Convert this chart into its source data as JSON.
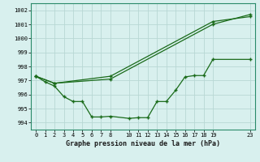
{
  "title": "Graphe pression niveau de la mer (hPa)",
  "bg_color": "#d8f0ee",
  "grid_color": "#b8d8d4",
  "line_color": "#1a6b1a",
  "ylim": [
    993.5,
    1002.5
  ],
  "yticks": [
    994,
    995,
    996,
    997,
    998,
    999,
    1000,
    1001,
    1002
  ],
  "xticks": [
    0,
    1,
    2,
    3,
    4,
    5,
    6,
    7,
    8,
    10,
    11,
    12,
    13,
    14,
    15,
    16,
    17,
    18,
    19,
    23
  ],
  "xlim": [
    -0.5,
    23.5
  ],
  "line1_x": [
    0,
    2,
    8,
    19,
    23
  ],
  "line1_y": [
    997.3,
    996.8,
    997.1,
    1001.0,
    1001.7
  ],
  "line2_x": [
    0,
    2,
    8,
    19,
    23
  ],
  "line2_y": [
    997.3,
    996.8,
    997.3,
    1001.2,
    1001.55
  ],
  "line3_x": [
    0,
    1,
    2,
    3,
    4,
    5,
    6,
    7,
    8,
    10,
    11,
    12,
    13,
    14,
    15,
    16,
    17,
    18,
    19,
    23
  ],
  "line3_y": [
    997.3,
    996.9,
    996.6,
    995.85,
    995.5,
    995.5,
    994.4,
    994.4,
    994.45,
    994.3,
    994.35,
    994.35,
    995.5,
    995.5,
    996.3,
    997.25,
    997.35,
    997.35,
    998.5,
    998.5
  ]
}
